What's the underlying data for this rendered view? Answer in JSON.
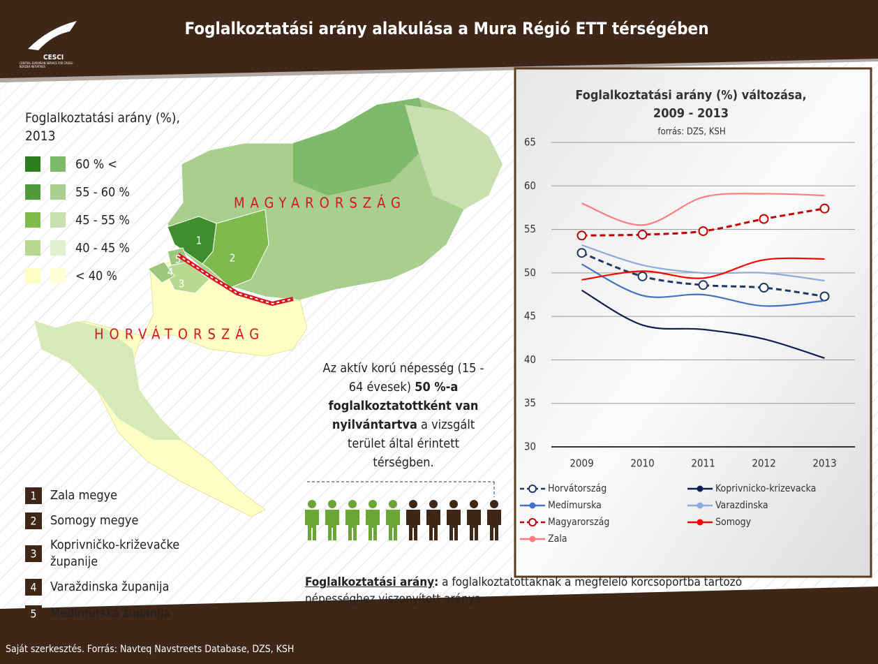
{
  "header": {
    "title": "Foglalkoztatási arány alakulása a Mura Régió ETT térségében",
    "logo": "CESCI",
    "logo_sub": "CENTRAL EUROPEAN SERVICE FOR CROSS-BORDER INITIATIVES"
  },
  "map": {
    "legend_title": "Foglalkoztatási arány (%), 2013",
    "legend": [
      "60 % <",
      "55 - 60 %",
      "45 - 55 %",
      "40 - 45 %",
      "< 40 %"
    ],
    "labels": [
      "MAGYARORSZÁG",
      "HORVÁTORSZÁG"
    ],
    "regions": [
      "1",
      "2",
      "3",
      "4",
      "5"
    ]
  },
  "counties": [
    {
      "number": "1",
      "name": "Zala megye"
    },
    {
      "number": "2",
      "name": "Somogy megye"
    },
    {
      "number": "3",
      "name": "Koprivničko-križevačke županije"
    },
    {
      "number": "4",
      "name": "Varaždinska županija"
    },
    {
      "number": "5",
      "name": "Međimurska županija"
    }
  ],
  "note": [
    "Az aktív korú népesség (15 - 64 évesek) ",
    "50 %-a foglalkoztatottként van nyilvántartva",
    " a vizsgált terület által érintett térségben."
  ],
  "definition": [
    "Foglalkoztatási arány",
    ":",
    " a foglalkoztatottaknak a megfelelő korcsoportba tartozó népességhez viszonyított aránya."
  ],
  "footer": "Saját szerkesztés. Forrás: Navteq Navstreets Database, DZS, KSH",
  "chart_data": {
    "type": "line",
    "title": "Foglalkoztatási arány (%) változása, 2009 - 2013",
    "subtitle": "forrás: DZS, KSH",
    "categories": [
      "2009",
      "2010",
      "2011",
      "2012",
      "2013"
    ],
    "ylim": [
      30,
      65
    ],
    "yticks": [
      30,
      35,
      40,
      45,
      50,
      55,
      60,
      65
    ],
    "grid": true,
    "series": [
      {
        "name": "Horvátország",
        "color": "#1f3864",
        "dash": true,
        "marker": "open",
        "values": [
          52.3,
          49.6,
          48.6,
          48.3,
          47.3
        ]
      },
      {
        "name": "Koprivnicko-krizevacka",
        "color": "#0d1f4f",
        "values": [
          48.0,
          44.0,
          43.5,
          42.4,
          40.2
        ]
      },
      {
        "name": "Medimurska",
        "color": "#4472c4",
        "values": [
          51.0,
          47.4,
          47.5,
          46.2,
          46.8
        ]
      },
      {
        "name": "Varazdinska",
        "color": "#8faadc",
        "values": [
          53.2,
          50.9,
          50.0,
          50.0,
          49.1
        ]
      },
      {
        "name": "Magyarország",
        "color": "#c00000",
        "dash": true,
        "marker": "open",
        "values": [
          54.3,
          54.4,
          54.8,
          56.2,
          57.4
        ]
      },
      {
        "name": "Somogy",
        "color": "#ff0000",
        "values": [
          49.2,
          50.2,
          49.4,
          51.5,
          51.6
        ]
      },
      {
        "name": "Zala",
        "color": "#ff7c80",
        "values": [
          58.0,
          55.5,
          58.7,
          59.1,
          58.9
        ]
      }
    ]
  }
}
